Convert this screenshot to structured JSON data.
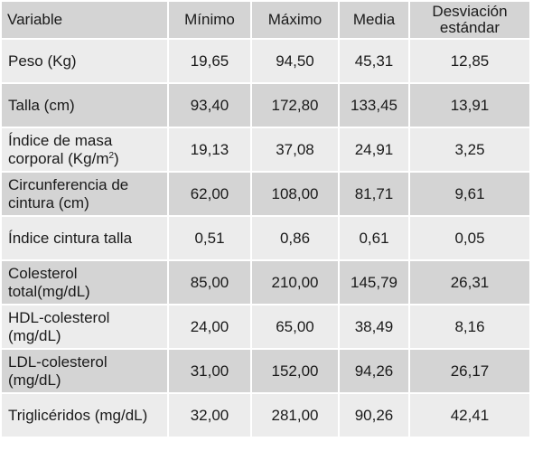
{
  "table": {
    "headers": {
      "variable": "Variable",
      "min": "Mínimo",
      "max": "Máximo",
      "mean": "Media",
      "sd": "Desviación estándar"
    },
    "rows": [
      {
        "variable": "Peso (Kg)",
        "min": "19,65",
        "max": "94,50",
        "mean": "45,31",
        "sd": "12,85"
      },
      {
        "variable": "Talla (cm)",
        "min": "93,40",
        "max": "172,80",
        "mean": "133,45",
        "sd": "13,91"
      },
      {
        "variable": "Índice de masa corporal (Kg/m",
        "variable_sup": "2",
        "variable_tail": ")",
        "min": "19,13",
        "max": "37,08",
        "mean": "24,91",
        "sd": "3,25"
      },
      {
        "variable": "Circunferencia de cintura (cm)",
        "min": "62,00",
        "max": "108,00",
        "mean": "81,71",
        "sd": "9,61"
      },
      {
        "variable": "Índice cintura talla",
        "min": "0,51",
        "max": "0,86",
        "mean": "0,61",
        "sd": "0,05"
      },
      {
        "variable": "Colesterol total(mg/dL)",
        "min": "85,00",
        "max": "210,00",
        "mean": "145,79",
        "sd": "26,31"
      },
      {
        "variable": "HDL-colesterol (mg/dL)",
        "min": "24,00",
        "max": "65,00",
        "mean": "38,49",
        "sd": "8,16"
      },
      {
        "variable": "LDL-colesterol (mg/dL)",
        "min": "31,00",
        "max": "152,00",
        "mean": "94,26",
        "sd": "26,17"
      },
      {
        "variable": "Triglicéridos (mg/dL)",
        "min": "32,00",
        "max": "281,00",
        "mean": "90,26",
        "sd": "42,41"
      }
    ]
  }
}
